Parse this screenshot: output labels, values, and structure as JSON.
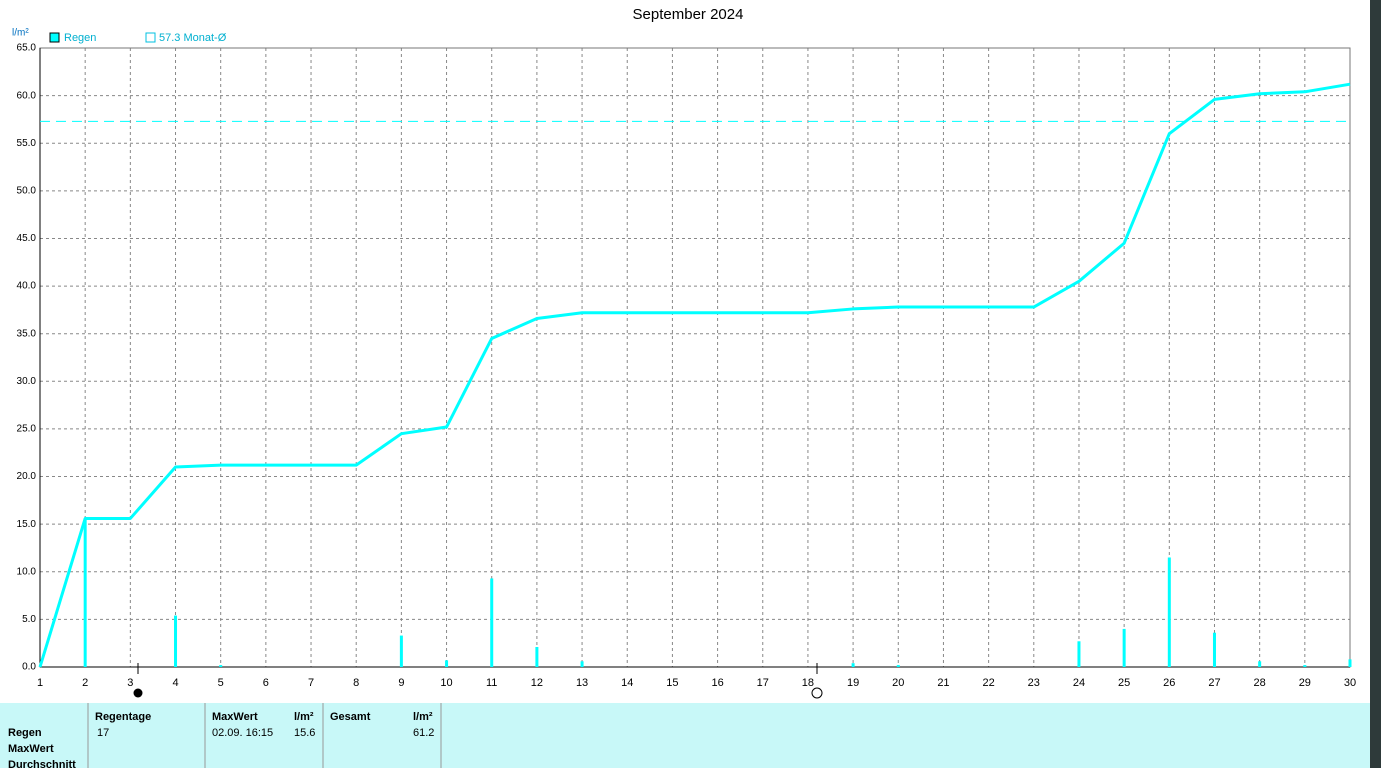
{
  "chart_data": {
    "type": "bar",
    "title": "September 2024",
    "y_label": "l/m²",
    "categories": [
      1,
      2,
      3,
      4,
      5,
      6,
      7,
      8,
      9,
      10,
      11,
      12,
      13,
      14,
      15,
      16,
      17,
      18,
      19,
      20,
      21,
      22,
      23,
      24,
      25,
      26,
      27,
      28,
      29,
      30
    ],
    "series": [
      {
        "name": "Regen",
        "type": "bar",
        "color": "#00ffff",
        "values": [
          0,
          15.6,
          0,
          5.4,
          0.2,
          0,
          0,
          0,
          3.3,
          0.7,
          9.3,
          2.1,
          0.6,
          0,
          0,
          0,
          0,
          0,
          0.4,
          0.2,
          0,
          0,
          0,
          2.7,
          4.0,
          11.5,
          3.6,
          0.6,
          0.2,
          0.8
        ]
      },
      {
        "type": "line",
        "color": "#00ffff",
        "values": [
          0,
          15.6,
          15.6,
          21.0,
          21.2,
          21.2,
          21.2,
          21.2,
          24.5,
          25.2,
          34.5,
          36.6,
          37.2,
          37.2,
          37.2,
          37.2,
          37.2,
          37.2,
          37.6,
          37.8,
          37.8,
          37.8,
          37.8,
          40.5,
          44.5,
          56.0,
          59.6,
          60.2,
          60.4,
          61.2
        ]
      }
    ],
    "average": {
      "value": 57.3,
      "label": "57.3 Monat-Ø"
    },
    "ylim": [
      0,
      65
    ],
    "yticks": [
      {
        "value": 0,
        "label": "0.0"
      },
      {
        "value": 5,
        "label": "5.0"
      },
      {
        "value": 10,
        "label": "10.0"
      },
      {
        "value": 15,
        "label": "15.0"
      },
      {
        "value": 20,
        "label": "20.0"
      },
      {
        "value": 25,
        "label": "25.0"
      },
      {
        "value": 30,
        "label": "30.0"
      },
      {
        "value": 35,
        "label": "35.0"
      },
      {
        "value": 40,
        "label": "40.0"
      },
      {
        "value": 45,
        "label": "45.0"
      },
      {
        "value": 50,
        "label": "50.0"
      },
      {
        "value": 55,
        "label": "55.0"
      },
      {
        "value": 60,
        "label": "60.0"
      },
      {
        "value": 65,
        "label": "65.0"
      }
    ],
    "grid": true
  },
  "summary": {
    "columns": [
      "Regentage",
      "MaxWert",
      "l/m²",
      "Gesamt",
      "l/m²"
    ],
    "row_labels": [
      "Regen",
      "MaxWert",
      "Durchschnitt"
    ],
    "regen": [
      17,
      "02.09.  16:15",
      15.6,
      61.2
    ]
  }
}
